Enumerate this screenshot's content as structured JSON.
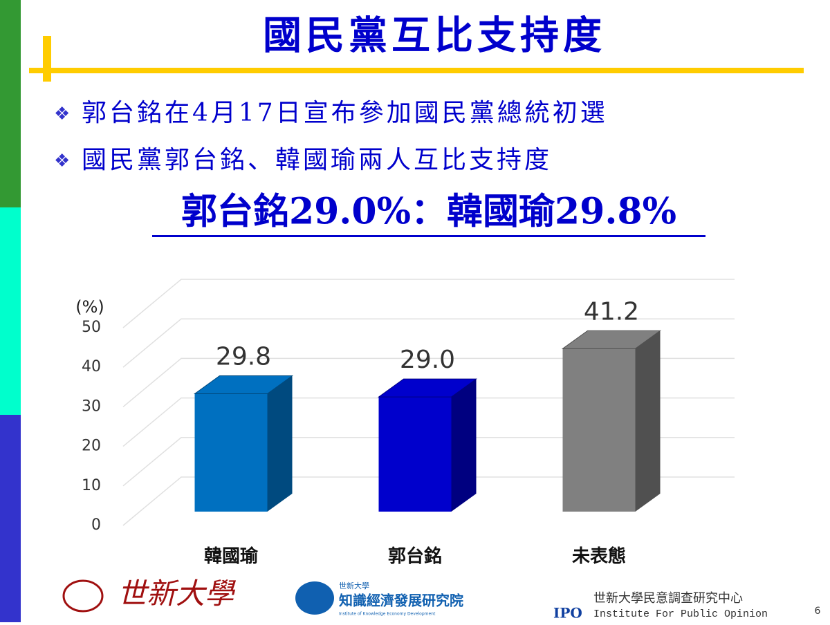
{
  "slide": {
    "title": "國民黨互比支持度",
    "bullets": [
      "郭台銘在4月17日宣布參加國民黨總統初選",
      "國民黨郭台銘、韓國瑜兩人互比支持度"
    ],
    "headline": "郭台銘29.0%：韓國瑜29.8%",
    "page_number": "6"
  },
  "chart_data": {
    "type": "bar3d",
    "y_unit": "(%)",
    "categories": [
      "韓國瑜",
      "郭台銘",
      "未表態"
    ],
    "values": [
      29.8,
      29.0,
      41.2
    ],
    "value_labels": [
      "29.8",
      "29.0",
      "41.2"
    ],
    "colors": [
      "#0070c0",
      "#0000cc",
      "#808080"
    ],
    "side_colors": [
      "#004a7f",
      "#000080",
      "#505050"
    ],
    "ylim": [
      0,
      50
    ],
    "yticks": [
      0,
      10,
      20,
      30,
      40,
      50
    ],
    "grid": true
  },
  "footer": {
    "university": "世新大學",
    "institute_tag": "世新大學",
    "institute": "知識經濟發展研究院",
    "institute_en": "Institute of Knowledge Economy Development",
    "ipo_name": "世新大學民意調查研究中心",
    "ipo_short": "IPO",
    "ipo_en": "Institute For Public Opinion"
  }
}
